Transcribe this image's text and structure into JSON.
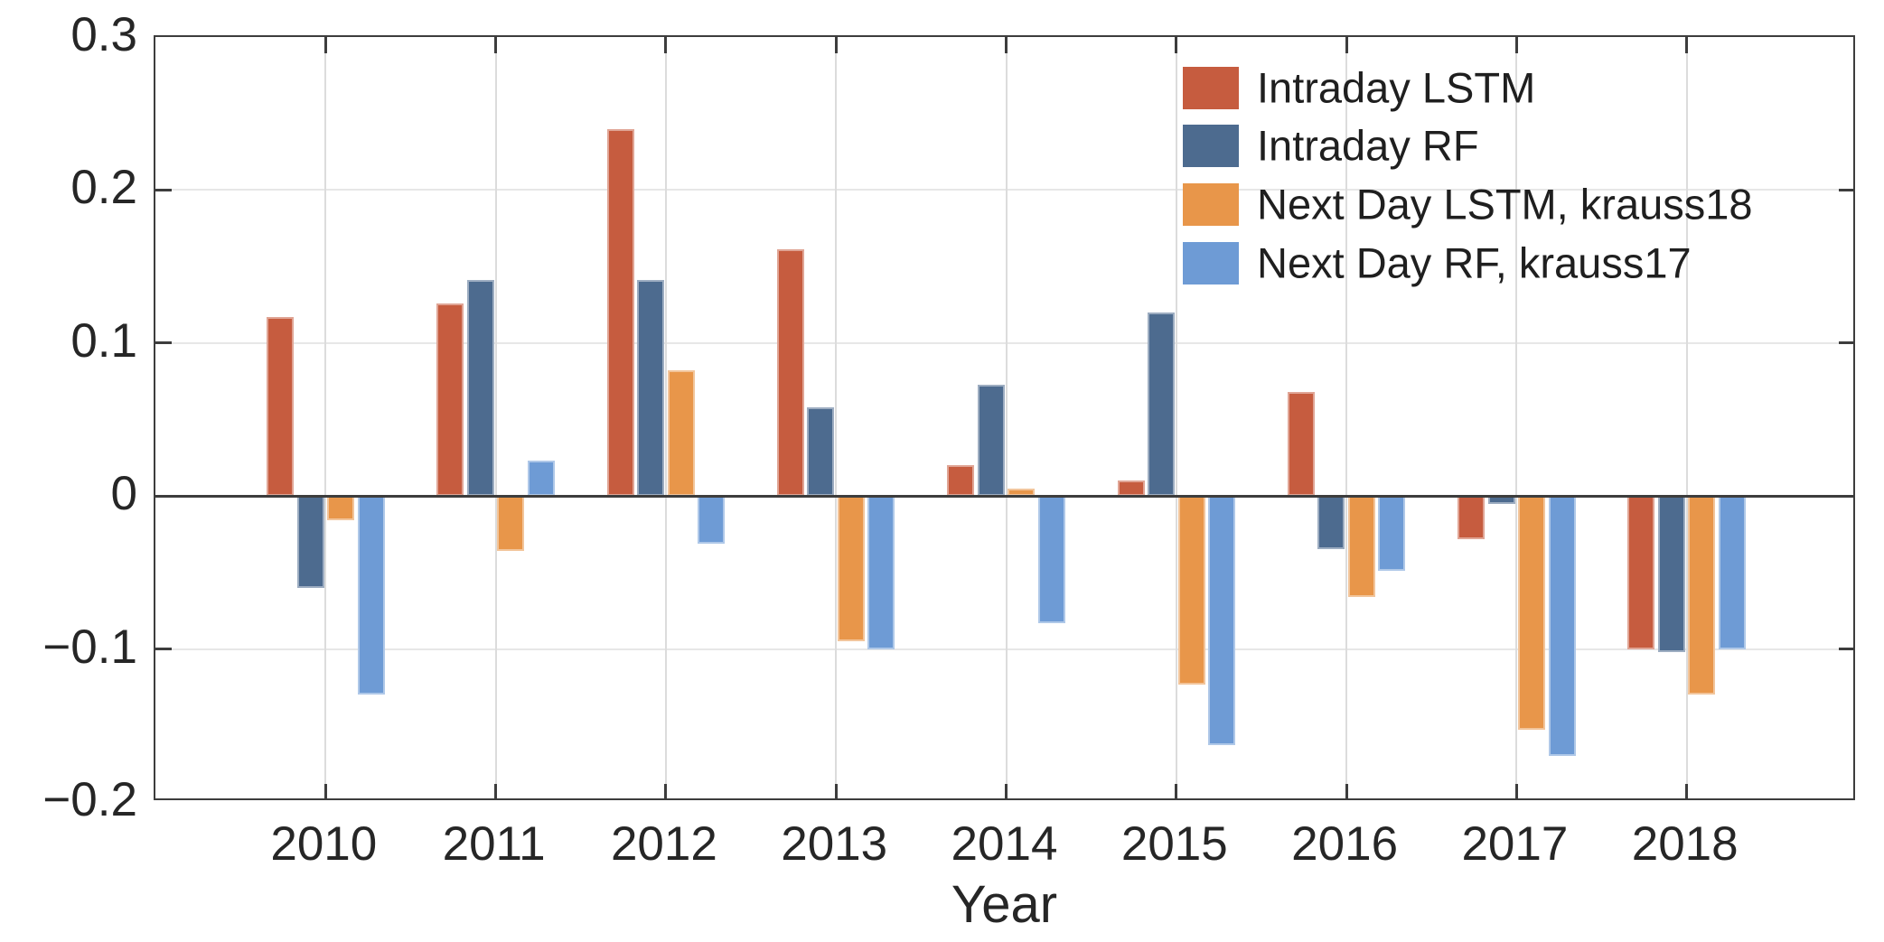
{
  "chart_data": {
    "type": "bar",
    "title": "",
    "xlabel": "Year",
    "ylabel": "",
    "categories": [
      "2010",
      "2011",
      "2012",
      "2013",
      "2014",
      "2015",
      "2016",
      "2017",
      "2018"
    ],
    "series": [
      {
        "name": "Intraday LSTM",
        "color": "#C65C3F",
        "values": [
          0.117,
          0.126,
          0.24,
          0.161,
          0.02,
          0.01,
          0.068,
          -0.028,
          -0.1
        ]
      },
      {
        "name": "Intraday RF",
        "color": "#4D6B8F",
        "values": [
          -0.06,
          0.141,
          0.141,
          0.058,
          0.073,
          0.12,
          -0.035,
          -0.005,
          -0.102
        ]
      },
      {
        "name": "Next Day LSTM, krauss18",
        "color": "#E8964A",
        "values": [
          -0.016,
          -0.036,
          0.082,
          -0.095,
          0.005,
          -0.123,
          -0.066,
          -0.153,
          -0.13
        ]
      },
      {
        "name": "Next Day RF, krauss17",
        "color": "#6E9BD5",
        "values": [
          -0.13,
          0.023,
          -0.031,
          -0.1,
          -0.083,
          -0.163,
          -0.049,
          -0.17,
          -0.1
        ]
      }
    ],
    "ylim": [
      -0.2,
      0.3
    ],
    "yticks": [
      0.3,
      0.2,
      0.1,
      0,
      -0.1,
      -0.2
    ],
    "ytick_labels": [
      "0.3",
      "0.2",
      "0.1",
      "0",
      "−0.1",
      "−0.2"
    ],
    "grid": true,
    "legend_position": "top-right",
    "axis_color": "#3d3d3d",
    "text_color": "#262626",
    "background_color": "#ffffff"
  }
}
